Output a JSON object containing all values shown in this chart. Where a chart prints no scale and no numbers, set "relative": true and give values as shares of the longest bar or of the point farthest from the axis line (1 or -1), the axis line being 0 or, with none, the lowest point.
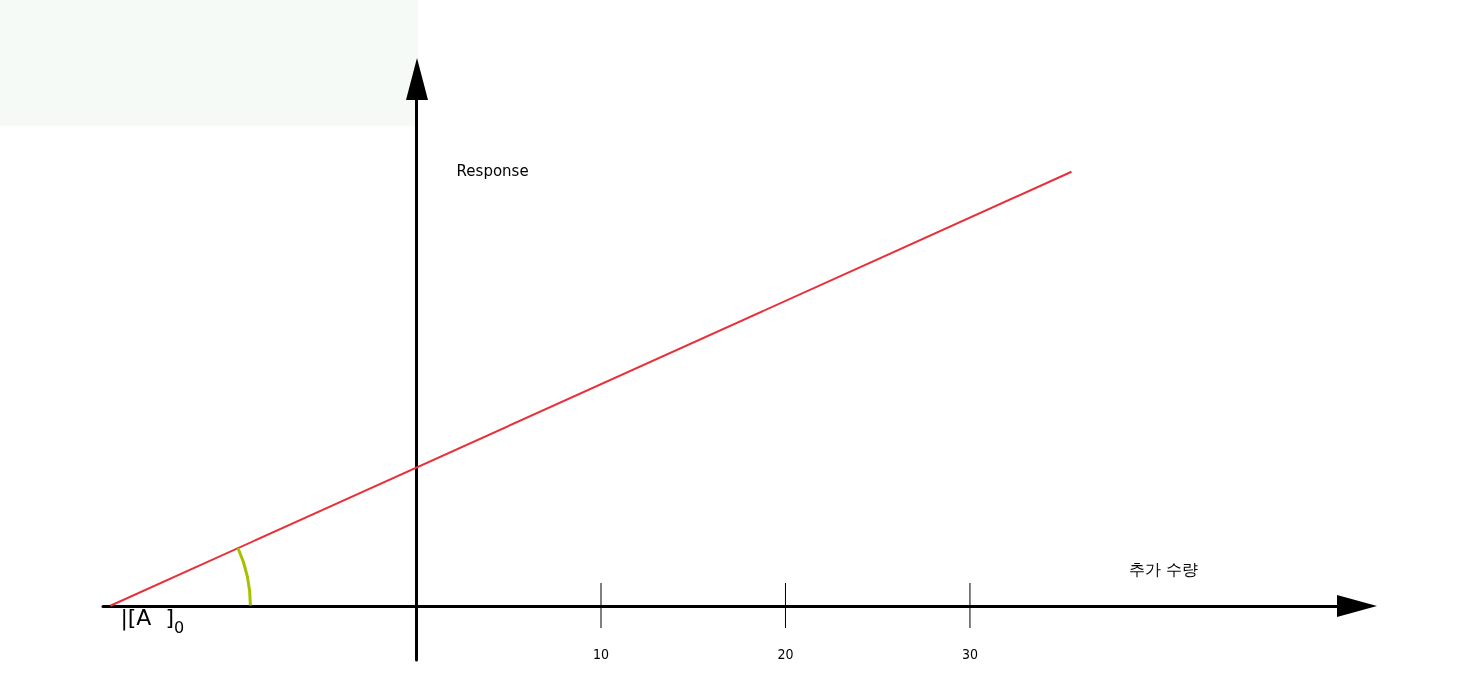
{
  "chart_data": {
    "type": "line",
    "relative": true,
    "xlabel": "추가 수량",
    "ylabel": "Response",
    "x": [
      -16.6,
      35.5
    ],
    "series": [
      {
        "color": "#e8303a",
        "values": [
          0,
          1
        ]
      }
    ],
    "xlim": [
      -17,
      50
    ],
    "xticks": [
      10,
      20,
      30
    ],
    "tick_labels": "x",
    "grid": false,
    "annotations": [
      {
        "text": "|[A  ]$_{0}$",
        "x": -16.6,
        "y": 0
      }
    ]
  }
}
